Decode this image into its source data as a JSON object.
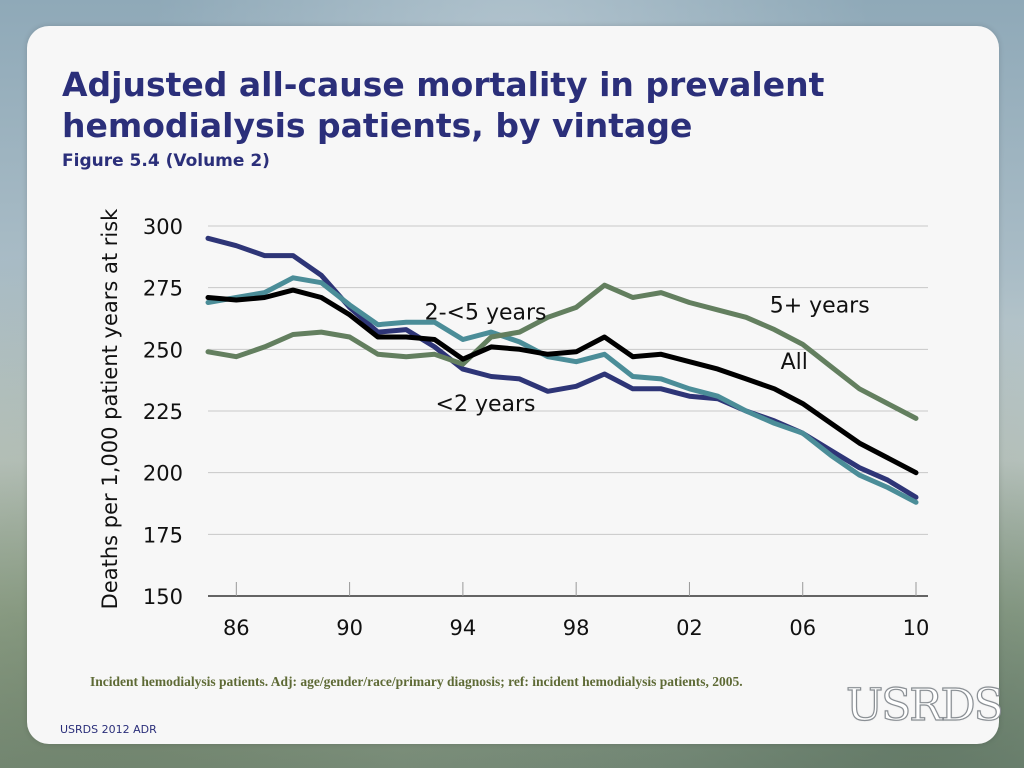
{
  "slide": {
    "title": "Adjusted all-cause mortality in prevalent hemodialysis patients, by vintage",
    "subtitle": "Figure 5.4 (Volume 2)",
    "footnote": "Incident hemodialysis patients. Adj: age/gender/race/primary diagnosis; ref: incident hemodialysis patients, 2005.",
    "source": "USRDS 2012 ADR",
    "logo": "USRDS"
  },
  "colors": {
    "lt2": "#2e3577",
    "y2to5": "#4b8d98",
    "y5plus": "#637f5f",
    "all": "#000000",
    "grid": "#c8c8c8",
    "axis": "#333333"
  },
  "chart_data": {
    "type": "line",
    "title": "",
    "xlabel": "",
    "ylabel": "Deaths per 1,000 patient years at risk",
    "xlim": [
      1985,
      2010
    ],
    "ylim": [
      150,
      300
    ],
    "yticks": [
      150,
      175,
      200,
      225,
      250,
      275,
      300
    ],
    "xticks": [
      1986,
      1990,
      1994,
      1998,
      2002,
      2006,
      2010
    ],
    "xtick_labels": [
      "86",
      "90",
      "94",
      "98",
      "02",
      "06",
      "10"
    ],
    "grid": true,
    "x": [
      1985,
      1986,
      1987,
      1988,
      1989,
      1990,
      1991,
      1992,
      1993,
      1994,
      1995,
      1996,
      1997,
      1998,
      1999,
      2000,
      2001,
      2002,
      2003,
      2004,
      2005,
      2006,
      2007,
      2008,
      2009,
      2010
    ],
    "series": [
      {
        "name": "<2 years",
        "color_key": "lt2",
        "values": [
          295,
          292,
          288,
          288,
          280,
          267,
          257,
          258,
          251,
          242,
          239,
          238,
          233,
          235,
          240,
          234,
          234,
          231,
          230,
          225,
          221,
          216,
          209,
          202,
          197,
          190
        ]
      },
      {
        "name": "2-<5 years",
        "color_key": "y2to5",
        "values": [
          269,
          271,
          273,
          279,
          277,
          268,
          260,
          261,
          261,
          254,
          257,
          253,
          247,
          245,
          248,
          239,
          238,
          234,
          231,
          225,
          220,
          216,
          207,
          199,
          194,
          188
        ]
      },
      {
        "name": "5+ years",
        "color_key": "y5plus",
        "values": [
          249,
          247,
          251,
          256,
          257,
          255,
          248,
          247,
          248,
          244,
          255,
          257,
          263,
          267,
          276,
          271,
          273,
          269,
          266,
          263,
          258,
          252,
          243,
          234,
          228,
          222
        ]
      },
      {
        "name": "All",
        "color_key": "all",
        "values": [
          271,
          270,
          271,
          274,
          271,
          264,
          255,
          255,
          254,
          246,
          251,
          250,
          248,
          249,
          255,
          247,
          248,
          245,
          242,
          238,
          234,
          228,
          220,
          212,
          206,
          200
        ]
      }
    ],
    "annotations": [
      {
        "text": "2-<5 years",
        "x": 1994.8,
        "y": 262
      },
      {
        "text": "<2 years",
        "x": 1994.8,
        "y": 225
      },
      {
        "text": "5+ years",
        "x": 2006.6,
        "y": 265
      },
      {
        "text": "All",
        "x": 2005.7,
        "y": 242
      }
    ]
  }
}
